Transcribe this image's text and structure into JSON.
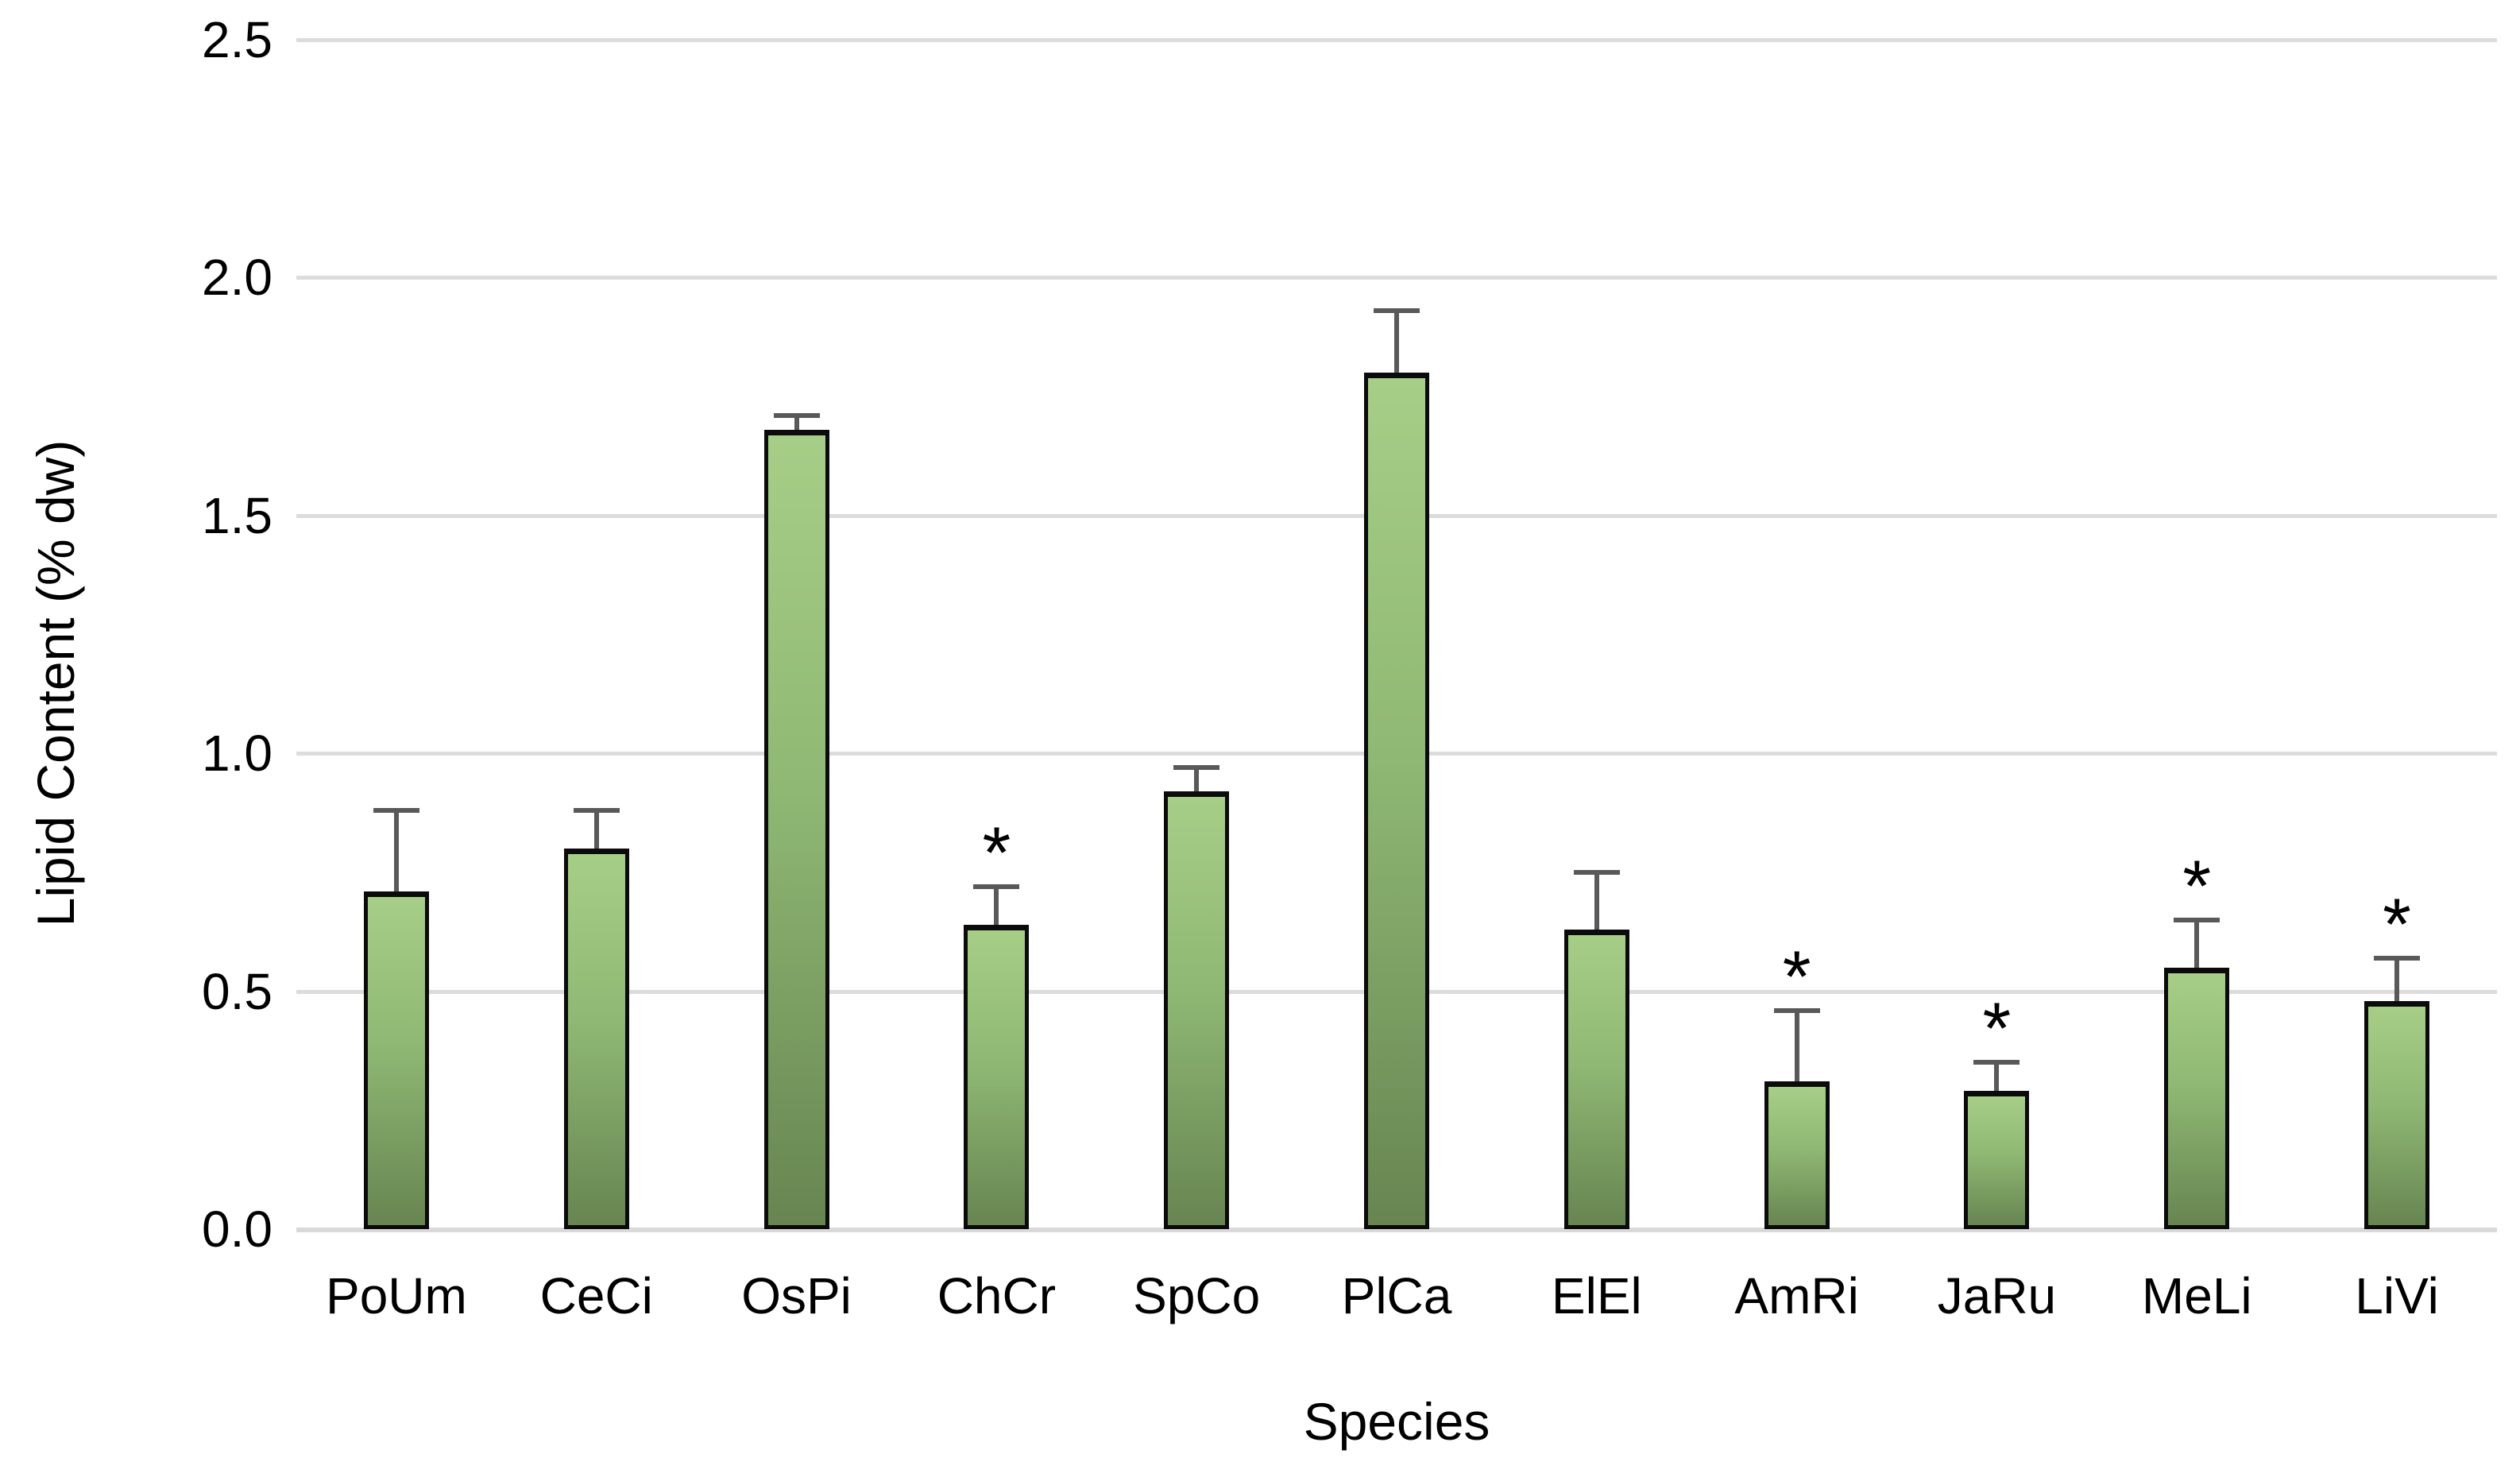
{
  "chart_data": {
    "type": "bar",
    "title": "",
    "xlabel": "Species",
    "ylabel": "Lipid Content (% dw)",
    "ylim": [
      0,
      2.5
    ],
    "ytick_step": 0.5,
    "ytick_labels": [
      "0.0",
      "0.5",
      "1.0",
      "1.5",
      "2.0",
      "2.5"
    ],
    "grid": true,
    "legend": false,
    "categories": [
      "PoUm",
      "CeCi",
      "OsPi",
      "ChCr",
      "SpCo",
      "PlCa",
      "ElEl",
      "AmRi",
      "JaRu",
      "MeLi",
      "LiVi"
    ],
    "series": [
      {
        "name": "Lipid Content (% dw)",
        "values": [
          0.71,
          0.8,
          1.68,
          0.64,
          0.92,
          1.8,
          0.63,
          0.31,
          0.29,
          0.55,
          0.48
        ],
        "error_plus": [
          0.17,
          0.08,
          0.03,
          0.08,
          0.05,
          0.13,
          0.12,
          0.15,
          0.06,
          0.1,
          0.09
        ],
        "significant": [
          false,
          false,
          false,
          true,
          false,
          false,
          false,
          true,
          true,
          true,
          true
        ]
      }
    ],
    "significance_marker": "*"
  },
  "style": {
    "background": "#ffffff",
    "gridline_color": "#dcdcdc",
    "bar_fill_top": "#a6ce87",
    "bar_fill_bottom": "#678551",
    "bar_border_color": "#0b0b0b",
    "error_bar_color": "#595959",
    "text_color": "#000000"
  }
}
